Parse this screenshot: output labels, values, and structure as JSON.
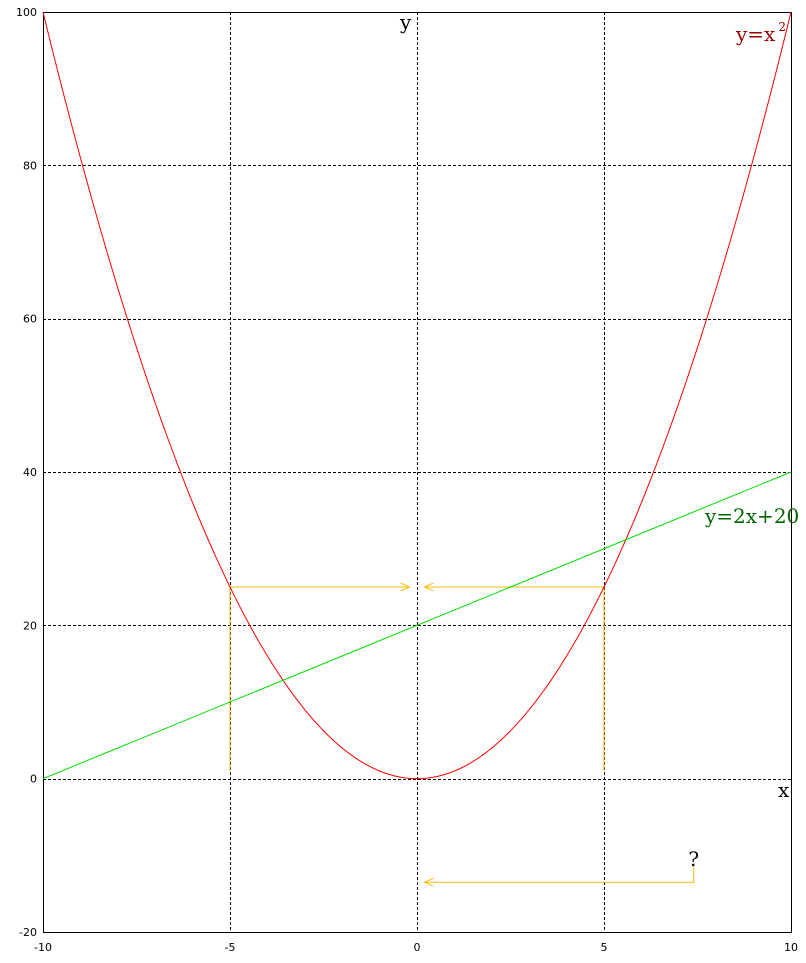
{
  "chart_data": {
    "type": "line",
    "xlim": [
      -10,
      10
    ],
    "ylim": [
      -20,
      100
    ],
    "x_ticks": [
      -10,
      -5,
      0,
      5,
      10
    ],
    "y_ticks": [
      -20,
      0,
      20,
      40,
      60,
      80,
      100
    ],
    "x_tick_labels": [
      "-10",
      "-5",
      "0",
      "5",
      "10"
    ],
    "y_tick_labels": [
      "-20",
      "0",
      "20",
      "40",
      "60",
      "80",
      "100"
    ],
    "grid": true,
    "grid_style": "dashed",
    "xlabel": "x",
    "ylabel": "y",
    "series": [
      {
        "name": "y=x2",
        "label_base": "y=x",
        "label_sup": "2",
        "color": "#ff0000",
        "label_color": "#990000",
        "x": [
          -10,
          -9,
          -8,
          -7,
          -6,
          -5,
          -4,
          -3,
          -2,
          -1,
          0,
          1,
          2,
          3,
          4,
          5,
          6,
          7,
          8,
          9,
          10
        ],
        "y": [
          100,
          81,
          64,
          49,
          36,
          25,
          16,
          9,
          4,
          1,
          0,
          1,
          4,
          9,
          16,
          25,
          36,
          49,
          64,
          81,
          100
        ]
      },
      {
        "name": "y=2x+20",
        "color": "#00dd00",
        "label_color": "#006600",
        "x": [
          -10,
          10
        ],
        "y": [
          0,
          40
        ]
      }
    ],
    "annotations": {
      "color": "#ffbb00",
      "verticals": [
        {
          "x": -5,
          "y_from": 1,
          "y_to": 25
        },
        {
          "x": 5,
          "y_from": 1,
          "y_to": 25
        }
      ],
      "arrows": [
        {
          "from": [
            -5,
            25
          ],
          "to": [
            -0.2,
            25
          ]
        },
        {
          "from": [
            5,
            25
          ],
          "to": [
            0.2,
            25
          ]
        },
        {
          "from": [
            7.4,
            -11.5
          ],
          "corner": [
            7.4,
            -13.5
          ],
          "to": [
            0.2,
            -13.5
          ]
        }
      ],
      "question": {
        "text": "?",
        "x": 7.4,
        "y": -10.5
      }
    }
  }
}
